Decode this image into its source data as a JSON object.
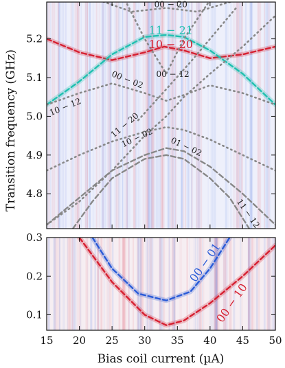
{
  "figure": {
    "xlabel": "Bias coil current (µA)",
    "ylabel": "Transition frequency (GHz)"
  },
  "chart_data": [
    {
      "type": "line",
      "panel": "top",
      "xlim": [
        15,
        50
      ],
      "ylim": [
        4.71,
        5.295
      ],
      "x_ticks": [
        15,
        20,
        25,
        30,
        35,
        40,
        45,
        50
      ],
      "y_ticks": [
        4.8,
        4.9,
        5.0,
        5.1,
        5.2
      ],
      "y_tick_labels": [
        "4.8",
        "4.9",
        "5.0",
        "5.1",
        "5.2"
      ],
      "series": [
        {
          "name": "10 − 20",
          "color": "#d62031",
          "style": "dashed",
          "x": [
            15,
            20,
            25,
            30,
            33,
            36,
            40,
            45,
            50
          ],
          "y": [
            5.2,
            5.165,
            5.145,
            5.165,
            5.18,
            5.17,
            5.15,
            5.16,
            5.18
          ]
        },
        {
          "name": "11 − 21",
          "color": "#20c0b0",
          "style": "dashed",
          "x": [
            15,
            20,
            25,
            30,
            33.3,
            36,
            40,
            45,
            50
          ],
          "y": [
            5.03,
            5.09,
            5.16,
            5.205,
            5.21,
            5.205,
            5.17,
            5.11,
            5.03
          ]
        },
        {
          "name": "00 − 02",
          "color": "#888888",
          "style": "dotted",
          "x": [
            15,
            20,
            25,
            30,
            33.3,
            36,
            40,
            45,
            50
          ],
          "y": [
            5.03,
            5.06,
            5.085,
            5.06,
            5.04,
            5.055,
            5.08,
            5.06,
            5.03
          ]
        },
        {
          "name": "01 − 02",
          "color": "#888888",
          "style": "dashed",
          "x": [
            15,
            20,
            25,
            30,
            33.3,
            36,
            40,
            45,
            50
          ],
          "y": [
            4.72,
            4.79,
            4.86,
            4.9,
            4.918,
            4.91,
            4.87,
            4.8,
            4.72
          ]
        },
        {
          "name": "11 − 12",
          "color": "#888888",
          "style": "dashed",
          "x": [
            19,
            22,
            25,
            30,
            33.3,
            36,
            40,
            43,
            46
          ],
          "y": [
            4.71,
            4.78,
            4.84,
            4.89,
            4.9,
            4.89,
            4.84,
            4.79,
            4.71
          ]
        },
        {
          "name": "10 − 02",
          "color": "#888888",
          "style": "dotted",
          "x": [
            15,
            20,
            25,
            30,
            33.3,
            36,
            40,
            45,
            50
          ],
          "y": [
            4.86,
            4.9,
            4.935,
            4.96,
            4.972,
            4.965,
            4.94,
            4.9,
            4.86
          ]
        },
        {
          "name": "10 − 12",
          "color": "#888888",
          "style": "dotted",
          "x": [
            15,
            20,
            25,
            30,
            33.3,
            36,
            40,
            45,
            50
          ],
          "y": [
            4.72,
            4.78,
            4.86,
            4.95,
            5.0,
            5.05,
            5.11,
            5.18,
            5.26
          ]
        },
        {
          "name": "00 − 12",
          "color": "#888888",
          "style": "dotted",
          "x": [
            27,
            30,
            33.3,
            36,
            40
          ],
          "y": [
            5.3,
            5.2,
            5.11,
            5.2,
            5.3
          ]
        },
        {
          "name": "11 − 20",
          "color": "#888888",
          "style": "dotted",
          "x": [
            29,
            33.3,
            37,
            40,
            44
          ],
          "y": [
            4.99,
            5.07,
            5.14,
            5.2,
            5.28
          ]
        },
        {
          "name": "00 − 20",
          "color": "#888888",
          "style": "dotted",
          "x": [
            23,
            28,
            33.3,
            38,
            44
          ],
          "y": [
            5.3,
            5.27,
            5.28,
            5.27,
            5.3
          ]
        }
      ],
      "labels": [
        {
          "text": "00 − 20",
          "x": 34.0,
          "y": 5.282
        },
        {
          "text": "11 − 21",
          "x": 34.0,
          "y": 5.213
        },
        {
          "text": "10 − 20",
          "x": 34.0,
          "y": 5.176
        },
        {
          "text": "00 − 12",
          "x": 34.3,
          "y": 5.102
        },
        {
          "text": "00 − 02",
          "x": 27.2,
          "y": 5.088
        },
        {
          "text": "10 − 12",
          "x": 18.0,
          "y": 5.018
        },
        {
          "text": "11 − 20",
          "x": 27.2,
          "y": 4.972
        },
        {
          "text": "10 − 02",
          "x": 29.0,
          "y": 4.938
        },
        {
          "text": "01 − 02",
          "x": 36.2,
          "y": 4.915
        },
        {
          "text": "11 − 12",
          "x": 45.5,
          "y": 4.745
        }
      ]
    },
    {
      "type": "line",
      "panel": "bottom",
      "xlim": [
        15,
        50
      ],
      "ylim": [
        0.06,
        0.3
      ],
      "x_ticks": [
        15,
        20,
        25,
        30,
        35,
        40,
        45,
        50
      ],
      "x_tick_labels": [
        "15",
        "20",
        "25",
        "30",
        "35",
        "40",
        "45",
        "50"
      ],
      "y_ticks": [
        0.1,
        0.2,
        0.3
      ],
      "y_tick_labels": [
        "0.1",
        "0.2",
        "0.3"
      ],
      "series": [
        {
          "name": "00 − 10",
          "color": "#d62031",
          "style": "dashed",
          "x": [
            20,
            25,
            30,
            33.3,
            36,
            40,
            45,
            50
          ],
          "y": [
            0.3,
            0.185,
            0.1,
            0.073,
            0.085,
            0.13,
            0.2,
            0.28
          ]
        },
        {
          "name": "00 − 01",
          "color": "#2a5bd7",
          "style": "dashed",
          "x": [
            22,
            25,
            29,
            33.3,
            37,
            40,
            43
          ],
          "y": [
            0.3,
            0.22,
            0.155,
            0.137,
            0.16,
            0.22,
            0.3
          ]
        }
      ],
      "labels": [
        {
          "text": "00 − 01",
          "x": 39.7,
          "y": 0.23
        },
        {
          "text": "00 − 10",
          "x": 43.8,
          "y": 0.125
        }
      ]
    }
  ]
}
